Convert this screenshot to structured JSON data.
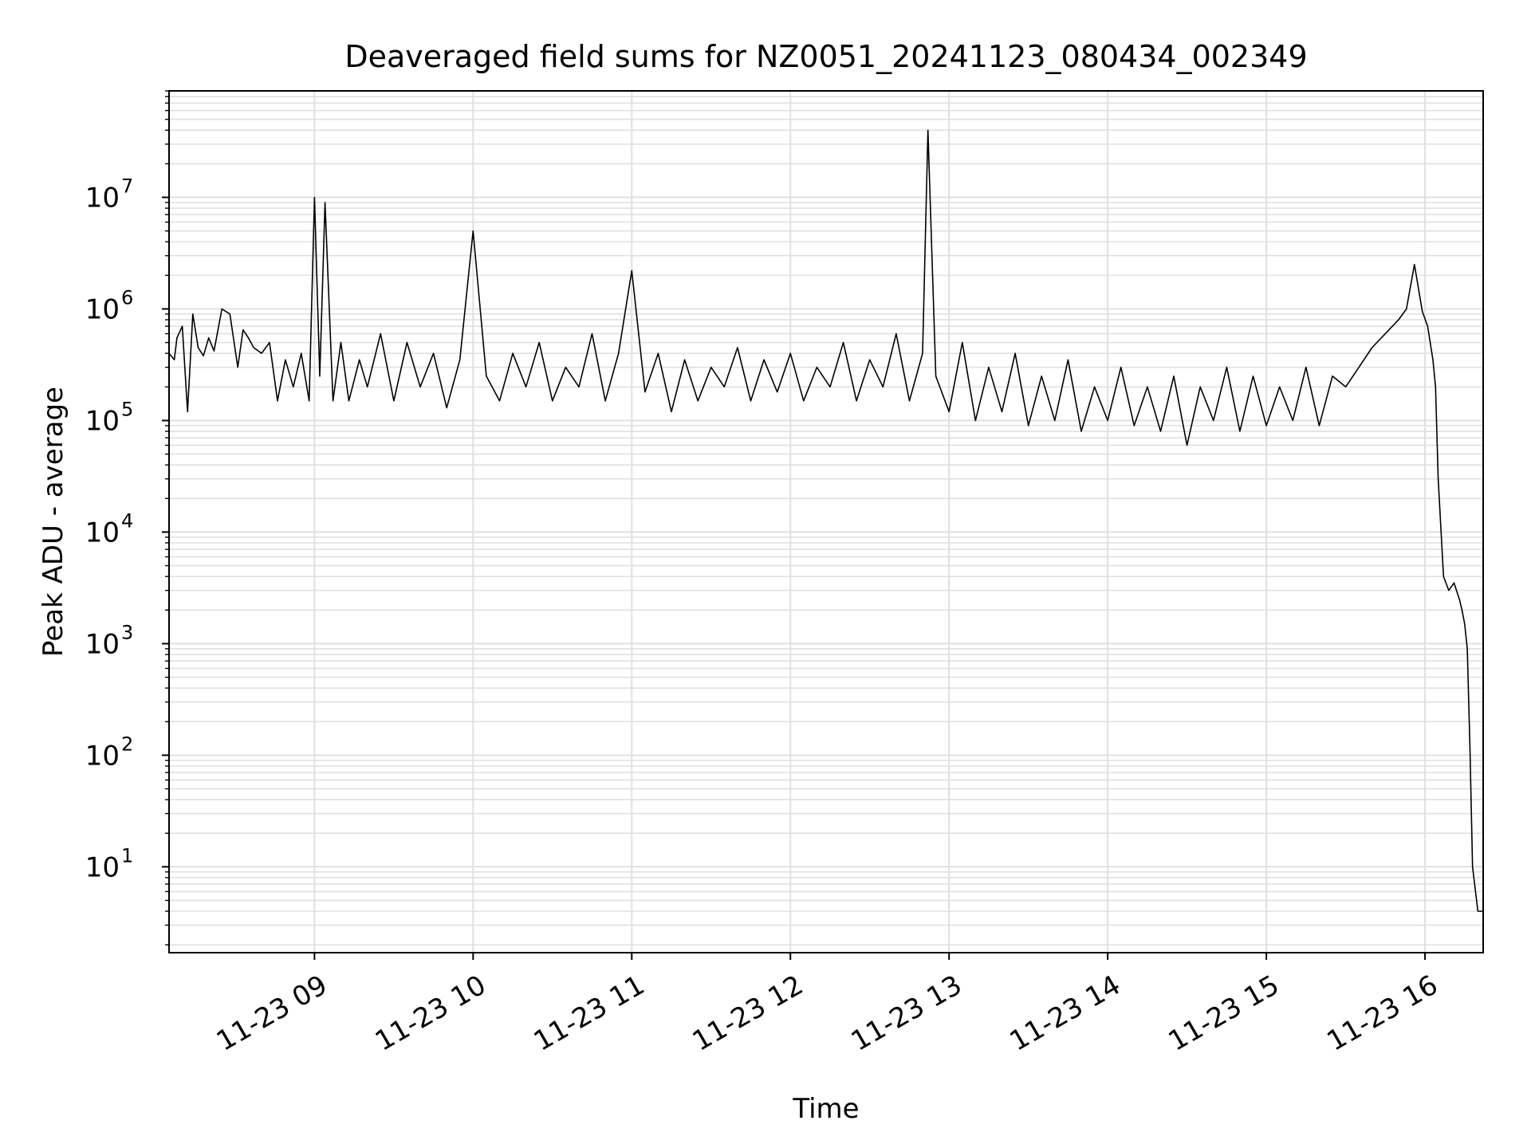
{
  "chart_data": {
    "type": "line",
    "title": "Deaveraged field sums for NZ0051_20241123_080434_002349",
    "xlabel": "Time",
    "ylabel": "Peak ADU - average",
    "x_range": [
      "2024-11-23T08:05:00",
      "2024-11-23T16:22:00"
    ],
    "ylim": [
      1.7,
      90000000
    ],
    "yscale": "log",
    "grid": true,
    "legend": "none",
    "line_color": "#000000",
    "grid_color": "#e0e0e0",
    "x_ticks": [
      {
        "t": "2024-11-23T09:00:00",
        "label": "11-23 09"
      },
      {
        "t": "2024-11-23T10:00:00",
        "label": "11-23 10"
      },
      {
        "t": "2024-11-23T11:00:00",
        "label": "11-23 11"
      },
      {
        "t": "2024-11-23T12:00:00",
        "label": "11-23 12"
      },
      {
        "t": "2024-11-23T13:00:00",
        "label": "11-23 13"
      },
      {
        "t": "2024-11-23T14:00:00",
        "label": "11-23 14"
      },
      {
        "t": "2024-11-23T15:00:00",
        "label": "11-23 15"
      },
      {
        "t": "2024-11-23T16:00:00",
        "label": "11-23 16"
      }
    ],
    "y_ticks": [
      {
        "v": 10,
        "base": "10",
        "exp": "1"
      },
      {
        "v": 100,
        "base": "10",
        "exp": "2"
      },
      {
        "v": 1000,
        "base": "10",
        "exp": "3"
      },
      {
        "v": 10000,
        "base": "10",
        "exp": "4"
      },
      {
        "v": 100000,
        "base": "10",
        "exp": "5"
      },
      {
        "v": 1000000,
        "base": "10",
        "exp": "6"
      },
      {
        "v": 10000000,
        "base": "10",
        "exp": "7"
      }
    ],
    "series": [
      {
        "x": [
          "2024-11-23T08:05:00",
          "2024-11-23T08:07:00",
          "2024-11-23T08:08:00",
          "2024-11-23T08:10:00",
          "2024-11-23T08:12:00",
          "2024-11-23T08:14:00",
          "2024-11-23T08:16:00",
          "2024-11-23T08:18:00",
          "2024-11-23T08:20:00",
          "2024-11-23T08:22:00",
          "2024-11-23T08:25:00",
          "2024-11-23T08:28:00",
          "2024-11-23T08:31:00",
          "2024-11-23T08:33:00",
          "2024-11-23T08:35:00",
          "2024-11-23T08:37:00",
          "2024-11-23T08:40:00",
          "2024-11-23T08:43:00",
          "2024-11-23T08:46:00",
          "2024-11-23T08:49:00",
          "2024-11-23T08:52:00",
          "2024-11-23T08:55:00",
          "2024-11-23T08:58:00",
          "2024-11-23T09:00:00",
          "2024-11-23T09:02:00",
          "2024-11-23T09:04:00",
          "2024-11-23T09:07:00",
          "2024-11-23T09:10:00",
          "2024-11-23T09:13:00",
          "2024-11-23T09:17:00",
          "2024-11-23T09:20:00",
          "2024-11-23T09:25:00",
          "2024-11-23T09:30:00",
          "2024-11-23T09:35:00",
          "2024-11-23T09:40:00",
          "2024-11-23T09:45:00",
          "2024-11-23T09:50:00",
          "2024-11-23T09:55:00",
          "2024-11-23T10:00:00",
          "2024-11-23T10:05:00",
          "2024-11-23T10:10:00",
          "2024-11-23T10:15:00",
          "2024-11-23T10:20:00",
          "2024-11-23T10:25:00",
          "2024-11-23T10:30:00",
          "2024-11-23T10:35:00",
          "2024-11-23T10:40:00",
          "2024-11-23T10:45:00",
          "2024-11-23T10:50:00",
          "2024-11-23T10:55:00",
          "2024-11-23T11:00:00",
          "2024-11-23T11:05:00",
          "2024-11-23T11:10:00",
          "2024-11-23T11:15:00",
          "2024-11-23T11:20:00",
          "2024-11-23T11:25:00",
          "2024-11-23T11:30:00",
          "2024-11-23T11:35:00",
          "2024-11-23T11:40:00",
          "2024-11-23T11:45:00",
          "2024-11-23T11:50:00",
          "2024-11-23T11:55:00",
          "2024-11-23T12:00:00",
          "2024-11-23T12:05:00",
          "2024-11-23T12:10:00",
          "2024-11-23T12:15:00",
          "2024-11-23T12:20:00",
          "2024-11-23T12:25:00",
          "2024-11-23T12:30:00",
          "2024-11-23T12:35:00",
          "2024-11-23T12:40:00",
          "2024-11-23T12:45:00",
          "2024-11-23T12:50:00",
          "2024-11-23T12:52:00",
          "2024-11-23T12:55:00",
          "2024-11-23T13:00:00",
          "2024-11-23T13:05:00",
          "2024-11-23T13:10:00",
          "2024-11-23T13:15:00",
          "2024-11-23T13:20:00",
          "2024-11-23T13:25:00",
          "2024-11-23T13:30:00",
          "2024-11-23T13:35:00",
          "2024-11-23T13:40:00",
          "2024-11-23T13:45:00",
          "2024-11-23T13:50:00",
          "2024-11-23T13:55:00",
          "2024-11-23T14:00:00",
          "2024-11-23T14:05:00",
          "2024-11-23T14:10:00",
          "2024-11-23T14:15:00",
          "2024-11-23T14:20:00",
          "2024-11-23T14:25:00",
          "2024-11-23T14:30:00",
          "2024-11-23T14:35:00",
          "2024-11-23T14:40:00",
          "2024-11-23T14:45:00",
          "2024-11-23T14:50:00",
          "2024-11-23T14:55:00",
          "2024-11-23T15:00:00",
          "2024-11-23T15:05:00",
          "2024-11-23T15:10:00",
          "2024-11-23T15:15:00",
          "2024-11-23T15:20:00",
          "2024-11-23T15:25:00",
          "2024-11-23T15:30:00",
          "2024-11-23T15:35:00",
          "2024-11-23T15:40:00",
          "2024-11-23T15:45:00",
          "2024-11-23T15:50:00",
          "2024-11-23T15:53:00",
          "2024-11-23T15:56:00",
          "2024-11-23T15:59:00",
          "2024-11-23T16:01:00",
          "2024-11-23T16:03:00",
          "2024-11-23T16:04:00",
          "2024-11-23T16:05:00",
          "2024-11-23T16:07:00",
          "2024-11-23T16:09:00",
          "2024-11-23T16:11:00",
          "2024-11-23T16:13:00",
          "2024-11-23T16:14:00",
          "2024-11-23T16:15:00",
          "2024-11-23T16:16:00",
          "2024-11-23T16:17:00",
          "2024-11-23T16:18:00",
          "2024-11-23T16:20:00",
          "2024-11-23T16:22:00"
        ],
        "y": [
          400000,
          350000,
          550000,
          700000,
          120000,
          900000,
          450000,
          380000,
          550000,
          420000,
          1000000,
          900000,
          300000,
          650000,
          550000,
          450000,
          400000,
          500000,
          150000,
          350000,
          200000,
          400000,
          150000,
          10000000,
          250000,
          9000000,
          150000,
          500000,
          150000,
          350000,
          200000,
          600000,
          150000,
          500000,
          200000,
          400000,
          130000,
          350000,
          5000000,
          250000,
          150000,
          400000,
          200000,
          500000,
          150000,
          300000,
          200000,
          600000,
          150000,
          400000,
          2200000,
          180000,
          400000,
          120000,
          350000,
          150000,
          300000,
          200000,
          450000,
          150000,
          350000,
          180000,
          400000,
          150000,
          300000,
          200000,
          500000,
          150000,
          350000,
          200000,
          600000,
          150000,
          400000,
          40000000,
          250000,
          120000,
          500000,
          100000,
          300000,
          120000,
          400000,
          90000,
          250000,
          100000,
          350000,
          80000,
          200000,
          100000,
          300000,
          90000,
          200000,
          80000,
          250000,
          60000,
          200000,
          100000,
          300000,
          80000,
          250000,
          90000,
          200000,
          100000,
          300000,
          90000,
          250000,
          200000,
          300000,
          450000,
          600000,
          800000,
          1000000,
          2500000,
          950000,
          700000,
          350000,
          200000,
          30000,
          4000,
          3000,
          3500,
          2500,
          2000,
          1500,
          900,
          120,
          10,
          4,
          4
        ]
      }
    ]
  }
}
